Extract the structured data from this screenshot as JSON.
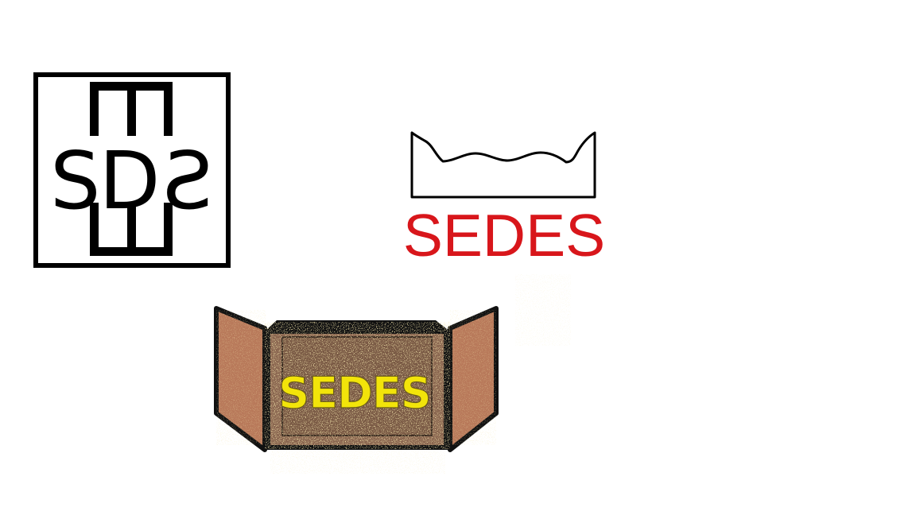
{
  "logos": {
    "monogram": {
      "left_text": "SD",
      "right_text": "S",
      "mirrored_right": true
    },
    "crown": {
      "label": "SEDES",
      "colors": {
        "label": "#d8161b",
        "outline": "#000000"
      }
    },
    "box": {
      "label": "SEDES",
      "colors": {
        "label": "#f2e40a",
        "label_outline": "#6a5a1a",
        "panel": "#b8795a",
        "inner": "#7a5a45",
        "rim": "#111111",
        "glitter": "#e8d070"
      }
    }
  }
}
